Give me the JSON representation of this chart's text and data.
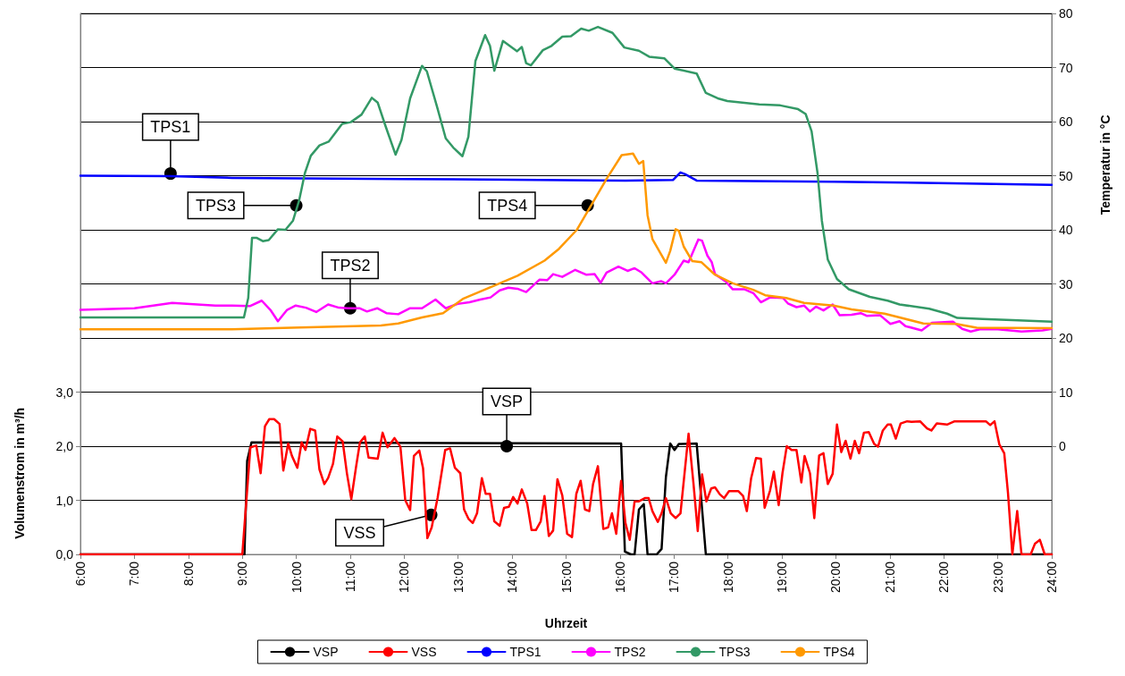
{
  "chart_data": {
    "type": "line",
    "xlabel": "Uhrzeit",
    "ylabel": "Volumenstrom in m³/h",
    "y2label": "Temperatur in °C",
    "xlim": [
      6,
      24
    ],
    "xticks": [
      {
        "value": 6,
        "label": "6:00"
      },
      {
        "value": 7,
        "label": "7:00"
      },
      {
        "value": 8,
        "label": "8:00"
      },
      {
        "value": 9,
        "label": "9:00"
      },
      {
        "value": 10,
        "label": "10:00"
      },
      {
        "value": 11,
        "label": "11:00"
      },
      {
        "value": 12,
        "label": "12:00"
      },
      {
        "value": 13,
        "label": "13:00"
      },
      {
        "value": 14,
        "label": "14:00"
      },
      {
        "value": 15,
        "label": "15:00"
      },
      {
        "value": 16,
        "label": "16:00"
      },
      {
        "value": 17,
        "label": "17:00"
      },
      {
        "value": 18,
        "label": "18:00"
      },
      {
        "value": 19,
        "label": "19:00"
      },
      {
        "value": 20,
        "label": "20:00"
      },
      {
        "value": 21,
        "label": "21:00"
      },
      {
        "value": 22,
        "label": "22:00"
      },
      {
        "value": 23,
        "label": "23:00"
      },
      {
        "value": 24,
        "label": "24:00"
      }
    ],
    "ylim": [
      0,
      10
    ],
    "yticks": [
      {
        "value": 0,
        "label": "0,0"
      },
      {
        "value": 1,
        "label": "1,0"
      },
      {
        "value": 2,
        "label": "2,0"
      },
      {
        "value": 3,
        "label": "3,0"
      }
    ],
    "y2lim": [
      -20,
      80
    ],
    "y2ticks": [
      0,
      10,
      20,
      30,
      40,
      50,
      60,
      70,
      80
    ],
    "grid": "y",
    "legend": "bottom",
    "marker": "none",
    "line_style": "solid",
    "annotations": [
      {
        "text": "TPS1",
        "x": 7.67,
        "y": 7.04
      },
      {
        "text": "TPS3",
        "x": 10.0,
        "y": 6.45
      },
      {
        "text": "TPS4",
        "x": 15.4,
        "y": 6.45
      },
      {
        "text": "TPS2",
        "x": 11.0,
        "y": 4.55
      },
      {
        "text": "VSP",
        "x": 13.9,
        "y": 2.0
      },
      {
        "text": "VSS",
        "x": 12.5,
        "y": 0.73
      }
    ],
    "series": [
      {
        "name": "VSP",
        "color": "#000000",
        "x": [
          6,
          9.0,
          9.04,
          9.09,
          9.17,
          16.02,
          16.09,
          16.2,
          16.27,
          16.35,
          16.44,
          16.51,
          16.68,
          16.77,
          16.85,
          16.93,
          17.01,
          17.09,
          17.42,
          17.59,
          24
        ],
        "values": [
          0,
          0,
          0,
          1.73,
          2.07,
          2.05,
          0.05,
          0,
          0,
          0.83,
          0.93,
          0,
          0,
          0.1,
          1.43,
          2.05,
          1.93,
          2.04,
          2.05,
          0,
          0
        ]
      },
      {
        "name": "VSS",
        "color": "#ff0000",
        "x": [
          6,
          9.0,
          9.15,
          9.26,
          9.34,
          9.42,
          9.5,
          9.59,
          9.69,
          9.76,
          9.85,
          9.92,
          10.02,
          10.1,
          10.17,
          10.26,
          10.35,
          10.43,
          10.52,
          10.59,
          10.68,
          10.76,
          10.86,
          10.94,
          11.02,
          11.11,
          11.18,
          11.27,
          11.34,
          11.51,
          11.6,
          11.69,
          11.82,
          11.93,
          12.02,
          12.11,
          12.18,
          12.28,
          12.35,
          12.43,
          12.51,
          12.62,
          12.76,
          12.85,
          12.94,
          13.04,
          13.11,
          13.19,
          13.27,
          13.35,
          13.44,
          13.51,
          13.59,
          13.67,
          13.77,
          13.85,
          13.94,
          14.02,
          14.1,
          14.18,
          14.28,
          14.36,
          14.44,
          14.53,
          14.6,
          14.68,
          14.76,
          14.84,
          14.93,
          15.02,
          15.11,
          15.19,
          15.27,
          15.35,
          15.43,
          15.5,
          15.59,
          15.69,
          15.78,
          15.85,
          15.93,
          16.02,
          16.1,
          16.18,
          16.27,
          16.35,
          16.46,
          16.53,
          16.6,
          16.7,
          16.77,
          16.85,
          16.94,
          17.03,
          17.12,
          17.27,
          17.36,
          17.44,
          17.52,
          17.6,
          17.69,
          17.76,
          17.85,
          17.93,
          18.02,
          18.19,
          18.28,
          18.35,
          18.43,
          18.52,
          18.61,
          18.68,
          18.78,
          18.85,
          18.94,
          19.01,
          19.09,
          19.18,
          19.27,
          19.36,
          19.42,
          19.52,
          19.6,
          19.69,
          19.77,
          19.85,
          19.94,
          20.02,
          20.1,
          20.18,
          20.27,
          20.35,
          20.43,
          20.52,
          20.61,
          20.71,
          20.78,
          20.87,
          20.96,
          21.02,
          21.11,
          21.2,
          21.32,
          21.4,
          21.56,
          21.69,
          21.77,
          21.87,
          22.06,
          22.2,
          22.78,
          22.86,
          22.94,
          23.03,
          23.12,
          23.19,
          23.27,
          23.36,
          23.44,
          23.61,
          23.69,
          23.78,
          23.87,
          24
        ],
        "values": [
          0,
          0,
          1.98,
          2.01,
          1.5,
          2.37,
          2.5,
          2.5,
          2.41,
          1.55,
          2.05,
          1.82,
          1.6,
          2.07,
          1.93,
          2.32,
          2.29,
          1.57,
          1.3,
          1.41,
          1.67,
          2.18,
          2.09,
          1.49,
          1.02,
          1.63,
          2.07,
          2.18,
          1.79,
          1.77,
          2.25,
          1.98,
          2.15,
          1.99,
          1.0,
          0.82,
          1.82,
          1.92,
          1.59,
          0.3,
          0.5,
          1.05,
          1.93,
          1.96,
          1.6,
          1.5,
          0.83,
          0.66,
          0.58,
          0.76,
          1.41,
          1.12,
          1.12,
          0.61,
          0.53,
          0.86,
          0.88,
          1.06,
          0.94,
          1.2,
          0.94,
          0.45,
          0.45,
          0.61,
          1.08,
          0.34,
          0.44,
          1.39,
          1.09,
          0.38,
          0.32,
          1.12,
          1.36,
          0.83,
          0.8,
          1.3,
          1.63,
          0.47,
          0.5,
          0.76,
          0.38,
          1.36,
          0.58,
          0.27,
          0.98,
          0.98,
          1.04,
          1.04,
          0.8,
          0.6,
          0.76,
          1.04,
          0.76,
          0.67,
          0.76,
          2.23,
          1.32,
          0.43,
          1.48,
          0.98,
          1.22,
          1.24,
          1.11,
          1.04,
          1.17,
          1.17,
          1.08,
          0.8,
          1.41,
          1.78,
          1.77,
          0.86,
          1.18,
          1.53,
          0.91,
          1.5,
          2.0,
          1.93,
          1.93,
          1.33,
          1.82,
          1.5,
          0.67,
          1.83,
          1.87,
          1.3,
          1.49,
          2.4,
          1.89,
          2.1,
          1.77,
          2.1,
          1.87,
          2.25,
          2.26,
          2.04,
          1.99,
          2.29,
          2.4,
          2.4,
          2.14,
          2.42,
          2.46,
          2.45,
          2.46,
          2.33,
          2.29,
          2.42,
          2.4,
          2.46,
          2.46,
          2.39,
          2.46,
          2.03,
          1.87,
          1.13,
          0,
          0.8,
          0,
          0,
          0.2,
          0.27,
          0,
          0
        ]
      },
      {
        "name": "TPS1",
        "color": "#0000ff",
        "axis": "y2",
        "x": [
          6,
          7.67,
          8.81,
          12.0,
          14.5,
          16.1,
          16.98,
          17.12,
          17.2,
          17.42,
          19.96,
          22.17,
          24
        ],
        "values": [
          50.0,
          49.9,
          49.6,
          49.4,
          49.2,
          49.1,
          49.2,
          50.6,
          50.3,
          49.1,
          48.9,
          48.6,
          48.3
        ]
      },
      {
        "name": "TPS2",
        "color": "#ff00ff",
        "axis": "y2",
        "x": [
          6,
          7.0,
          7.7,
          8.5,
          8.81,
          9.14,
          9.36,
          9.52,
          9.66,
          9.83,
          9.99,
          10.18,
          10.37,
          10.59,
          10.79,
          10.95,
          11.17,
          11.31,
          11.5,
          11.67,
          11.89,
          12.11,
          12.33,
          12.58,
          12.77,
          12.99,
          13.21,
          13.41,
          13.6,
          13.77,
          13.93,
          14.1,
          14.26,
          14.51,
          14.65,
          14.76,
          14.93,
          15.17,
          15.37,
          15.53,
          15.64,
          15.75,
          15.97,
          16.14,
          16.27,
          16.4,
          16.6,
          16.76,
          16.85,
          17.01,
          17.18,
          17.27,
          17.45,
          17.52,
          17.62,
          17.7,
          17.76,
          17.95,
          18.09,
          18.31,
          18.47,
          18.61,
          18.78,
          19.02,
          19.11,
          19.27,
          19.41,
          19.52,
          19.63,
          19.77,
          19.94,
          20.07,
          20.29,
          20.46,
          20.57,
          20.82,
          21.01,
          21.18,
          21.29,
          21.59,
          21.78,
          22.17,
          22.34,
          22.5,
          22.67,
          23.0,
          23.44,
          23.83,
          24
        ],
        "values": [
          25.2,
          25.5,
          26.5,
          26.0,
          26.0,
          25.9,
          26.9,
          25.2,
          23.1,
          25.2,
          26.0,
          25.6,
          24.8,
          26.2,
          25.6,
          25.5,
          25.5,
          24.9,
          25.5,
          24.6,
          24.4,
          25.5,
          25.5,
          27.1,
          25.5,
          26.3,
          26.6,
          27.1,
          27.5,
          28.8,
          29.3,
          29.1,
          28.5,
          30.8,
          30.7,
          31.8,
          31.3,
          32.6,
          31.7,
          31.8,
          30.2,
          32.1,
          33.2,
          32.4,
          32.9,
          32.1,
          30.1,
          30.5,
          30.1,
          31.7,
          34.3,
          34.0,
          38.2,
          38.0,
          35.2,
          34.0,
          31.8,
          30.5,
          29.0,
          29.0,
          28.3,
          26.6,
          27.5,
          27.4,
          26.4,
          25.7,
          26.0,
          24.9,
          25.8,
          25.1,
          26.2,
          24.2,
          24.3,
          24.6,
          24.1,
          24.2,
          22.6,
          23.1,
          22.2,
          21.4,
          22.8,
          23.0,
          21.7,
          21.2,
          21.6,
          21.6,
          21.2,
          21.4,
          21.7
        ]
      },
      {
        "name": "TPS3",
        "color": "#339966",
        "axis": "y2",
        "x": [
          6,
          9.03,
          9.11,
          9.18,
          9.27,
          9.38,
          9.49,
          9.66,
          9.8,
          9.94,
          10.05,
          10.16,
          10.27,
          10.43,
          10.6,
          10.85,
          11.01,
          11.21,
          11.4,
          11.51,
          11.65,
          11.84,
          11.95,
          12.11,
          12.33,
          12.42,
          12.61,
          12.77,
          12.91,
          13.08,
          13.19,
          13.32,
          13.5,
          13.59,
          13.67,
          13.83,
          14.09,
          14.18,
          14.26,
          14.35,
          14.57,
          14.73,
          14.93,
          15.09,
          15.28,
          15.42,
          15.59,
          15.86,
          16.08,
          16.35,
          16.54,
          16.82,
          17.01,
          17.42,
          17.59,
          17.81,
          17.99,
          18.58,
          18.97,
          19.3,
          19.44,
          19.55,
          19.66,
          19.74,
          19.85,
          20.02,
          20.24,
          20.63,
          20.96,
          21.18,
          21.73,
          22.06,
          22.25,
          22.72,
          23.27,
          24
        ],
        "values": [
          23.8,
          23.8,
          27.4,
          38.5,
          38.5,
          37.9,
          38.1,
          40.1,
          40.0,
          41.7,
          45.3,
          50.5,
          53.7,
          55.6,
          56.3,
          59.6,
          59.9,
          61.3,
          64.4,
          63.5,
          59.3,
          53.9,
          56.6,
          64.3,
          70.3,
          69.3,
          62.7,
          56.9,
          55.2,
          53.6,
          57.2,
          71.2,
          76.0,
          74.0,
          69.4,
          74.9,
          73.0,
          73.8,
          70.8,
          70.4,
          73.2,
          74.0,
          75.7,
          75.8,
          77.2,
          76.8,
          77.5,
          76.4,
          73.7,
          73.1,
          72.0,
          71.7,
          69.8,
          68.9,
          65.3,
          64.3,
          63.8,
          63.2,
          63.0,
          62.3,
          61.4,
          58.2,
          50.5,
          41.7,
          34.5,
          30.9,
          29.0,
          27.6,
          26.9,
          26.2,
          25.4,
          24.5,
          23.7,
          23.5,
          23.3,
          23.0
        ]
      },
      {
        "name": "TPS4",
        "color": "#ff9900",
        "axis": "y2",
        "x": [
          6,
          8.81,
          9.91,
          11.57,
          11.89,
          12.33,
          12.72,
          13.1,
          13.77,
          14.1,
          14.6,
          14.87,
          15.2,
          15.75,
          16.03,
          16.24,
          16.35,
          16.43,
          16.51,
          16.6,
          16.85,
          16.93,
          17.03,
          17.09,
          17.18,
          17.34,
          17.51,
          17.76,
          18.09,
          18.47,
          18.69,
          19.08,
          19.41,
          19.96,
          20.29,
          20.9,
          21.18,
          21.62,
          22.23,
          22.61,
          24
        ],
        "values": [
          21.6,
          21.6,
          21.9,
          22.3,
          22.7,
          23.8,
          24.6,
          27.3,
          30.1,
          31.5,
          34.3,
          36.5,
          40.0,
          49.4,
          53.8,
          54.1,
          52.2,
          52.7,
          42.7,
          38.3,
          33.9,
          36.1,
          40.1,
          39.8,
          36.9,
          34.2,
          34.0,
          31.7,
          30.1,
          28.9,
          27.9,
          27.4,
          26.5,
          26.0,
          25.3,
          24.5,
          23.8,
          22.7,
          22.6,
          21.9,
          21.8
        ]
      }
    ]
  }
}
